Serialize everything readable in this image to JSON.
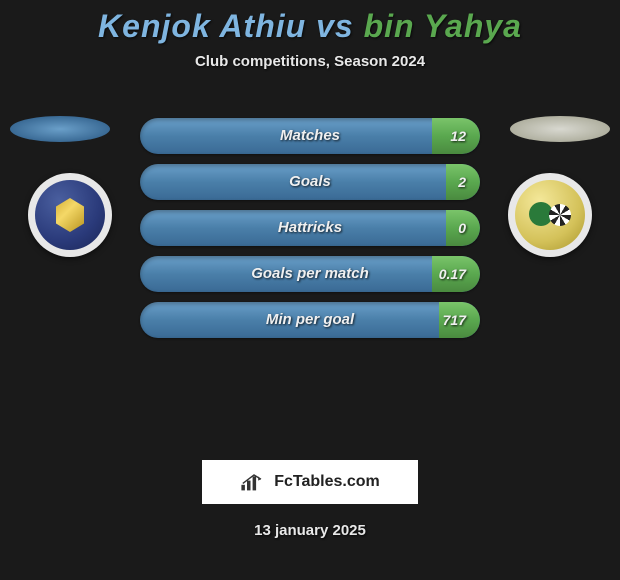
{
  "title": {
    "player1": "Kenjok Athiu",
    "vs": "vs",
    "player2": "bin Yahya"
  },
  "subtitle": "Club competitions, Season 2024",
  "colors": {
    "player1": "#7fb5e0",
    "player2": "#5aa84f",
    "bar_left_top": "#6a9fc9",
    "bar_left_bottom": "#3a6a95",
    "bar_right_top": "#7ac46a",
    "bar_right_bottom": "#4a8a3f",
    "background": "#1a1a1a"
  },
  "stats": [
    {
      "label": "Matches",
      "right_value": "12",
      "right_width_pct": 14
    },
    {
      "label": "Goals",
      "right_value": "2",
      "right_width_pct": 10
    },
    {
      "label": "Hattricks",
      "right_value": "0",
      "right_width_pct": 10
    },
    {
      "label": "Goals per match",
      "right_value": "0.17",
      "right_width_pct": 14
    },
    {
      "label": "Min per goal",
      "right_value": "717",
      "right_width_pct": 12
    }
  ],
  "logo_text": "FcTables.com",
  "date": "13 january 2025",
  "badges": {
    "left_bg": "#2a3a7a",
    "right_bg": "#d4c25a"
  }
}
